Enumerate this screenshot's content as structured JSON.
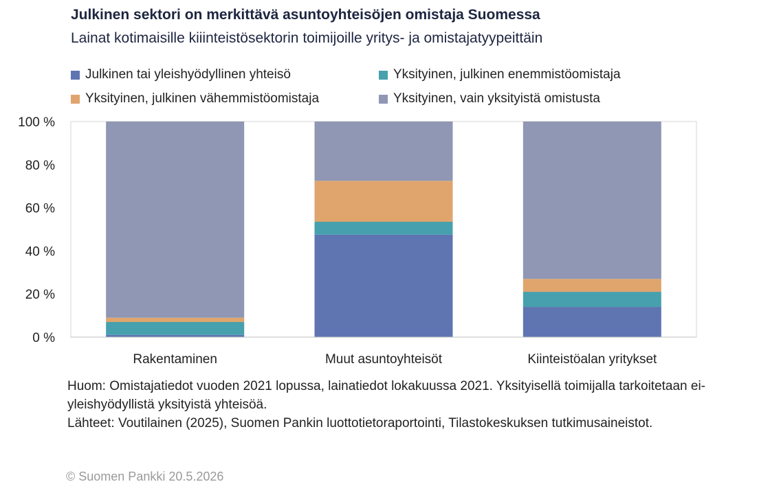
{
  "title": "Julkinen sektori on merkittävä asuntoyhteisöjen omistaja Suomessa",
  "subtitle": "Lainat kotimaisille kiiinteistösektorin toimijoille yritys- ja omistajatyypeittäin",
  "chart_data": {
    "type": "bar",
    "stacked": true,
    "categories": [
      "Rakentaminen",
      "Muut asuntoyhteisöt",
      "Kiinteistöalan yritykset"
    ],
    "series": [
      {
        "name": "Julkinen tai yleishyödyllinen yhteisö",
        "color": "#5e75b2",
        "values": [
          1,
          47.5,
          14
        ]
      },
      {
        "name": "Yksityinen, julkinen enemmistöomistaja",
        "color": "#47a0ad",
        "values": [
          6,
          6,
          7
        ]
      },
      {
        "name": "Yksityinen, julkinen vähemmistöomistaja",
        "color": "#dfa56d",
        "values": [
          2,
          19,
          6
        ]
      },
      {
        "name": "Yksityinen, vain yksityistä omistusta",
        "color": "#8f97b4",
        "values": [
          91,
          27.5,
          73
        ]
      }
    ],
    "y_ticks": [
      "0 %",
      "20 %",
      "40 %",
      "60 %",
      "80 %",
      "100 %"
    ],
    "ylim": [
      0,
      100
    ],
    "legend_position": "top",
    "grid": false
  },
  "notes": [
    "Huom: Omistajatiedot vuoden 2021 lopussa, lainatiedot lokakuussa 2021. Yksityisellä toimijalla tarkoitetaan ei-yleishyödyllistä yksityistä yhteisöä.",
    "Lähteet: Voutilainen (2025), Suomen Pankin luottotietoraportointi, Tilastokeskuksen tutkimusaineistot."
  ],
  "copyright": "© Suomen Pankki 20.5.2026"
}
